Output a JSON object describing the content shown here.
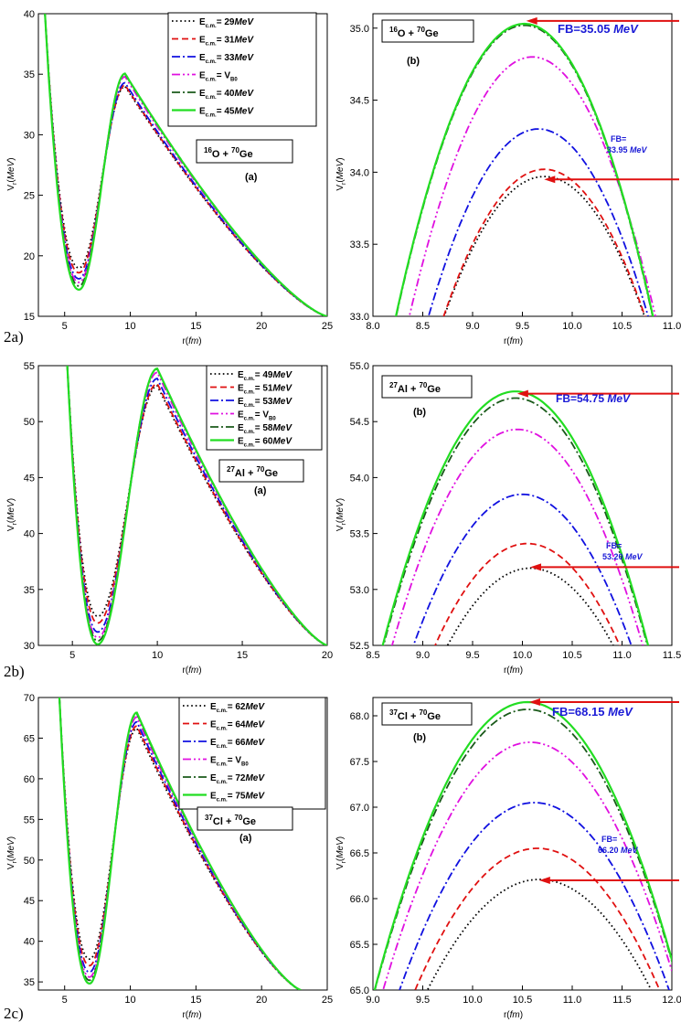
{
  "row_labels": [
    "2a)",
    "2b)",
    "2c)"
  ],
  "chart_data": [
    {
      "type": "line",
      "id": "2a-a",
      "row": 0,
      "side": "left",
      "xlim": [
        3,
        25
      ],
      "ylim": [
        15,
        40
      ],
      "xticks": [
        5,
        10,
        15,
        20,
        25
      ],
      "yticks": [
        15,
        20,
        25,
        30,
        35,
        40
      ],
      "xlabel": "r(fm)",
      "ylabel": "Vr(MeV)",
      "panel_label": "(a)",
      "reaction_label": "16O + 70Ge",
      "well": {
        "x0": 3.5,
        "ystart": 40,
        "xmin": 6.1,
        "xpeak": 9.6,
        "xend": 25,
        "yend": 15
      },
      "series": [
        {
          "name": "Ec.m.= 29MeV",
          "color": "#000000",
          "dash": "dot",
          "ymin": 19.0,
          "ypeak": 34.0
        },
        {
          "name": "Ec.m.= 31MeV",
          "color": "#e01010",
          "dash": "dash",
          "ymin": 18.6,
          "ypeak": 34.1
        },
        {
          "name": "Ec.m.= 33MeV",
          "color": "#1010e0",
          "dash": "dashdot",
          "ymin": 18.1,
          "ypeak": 34.3
        },
        {
          "name": "Ec.m.= VB0",
          "color": "#e010e0",
          "dash": "dashdotdot",
          "ymin": 17.8,
          "ypeak": 34.8
        },
        {
          "name": "Ec.m.= 40MeV",
          "color": "#1a5a1a",
          "dash": "dashdot",
          "ymin": 17.5,
          "ypeak": 35.0
        },
        {
          "name": "Ec.m.= 45MeV",
          "color": "#22dd22",
          "dash": "solid",
          "ymin": 17.2,
          "ypeak": 35.05
        }
      ]
    },
    {
      "type": "line",
      "id": "2a-b",
      "row": 0,
      "side": "right",
      "xlim": [
        8.0,
        11.0
      ],
      "ylim": [
        33.0,
        35.1
      ],
      "xticks": [
        8.0,
        8.5,
        9.0,
        9.5,
        10.0,
        10.5,
        11.0
      ],
      "yticks": [
        33.0,
        33.5,
        34.0,
        34.5,
        35.0
      ],
      "xlabel": "r(fm)",
      "ylabel": "Vr(MeV)",
      "panel_label": "(b)",
      "reaction_label": "16O + 70Ge",
      "fb_high": "FB=35.05 MeV",
      "fb_low_1": "FB=",
      "fb_low_2": "33.95 MeV",
      "fb_high_value": 35.05,
      "fb_low_value": 33.95,
      "series": [
        {
          "name": "29 MeV",
          "color": "#000000",
          "dash": "dot",
          "xpeak": 9.72,
          "ypeak": 33.97,
          "a": 0.96
        },
        {
          "name": "31 MeV",
          "color": "#e01010",
          "dash": "dash",
          "xpeak": 9.72,
          "ypeak": 34.02,
          "a": 1.0
        },
        {
          "name": "33 MeV",
          "color": "#1010e0",
          "dash": "dashdot",
          "xpeak": 9.66,
          "ypeak": 34.3,
          "a": 1.07
        },
        {
          "name": "VB0",
          "color": "#e010e0",
          "dash": "dashdotdot",
          "xpeak": 9.6,
          "ypeak": 34.8,
          "a": 1.18
        },
        {
          "name": "40 MeV",
          "color": "#1a5a1a",
          "dash": "dashdot",
          "xpeak": 9.52,
          "ypeak": 35.02,
          "a": 1.22
        },
        {
          "name": "45 MeV",
          "color": "#22dd22",
          "dash": "solid",
          "xpeak": 9.52,
          "ypeak": 35.03,
          "a": 1.22
        }
      ]
    },
    {
      "type": "line",
      "id": "2b-a",
      "row": 1,
      "side": "left",
      "xlim": [
        3,
        20
      ],
      "ylim": [
        30,
        55
      ],
      "xticks": [
        5,
        10,
        15,
        20
      ],
      "yticks": [
        30,
        35,
        40,
        45,
        50,
        55
      ],
      "xlabel": "r(fm)",
      "ylabel": "Vr(MeV)",
      "panel_label": "(a)",
      "reaction_label": "27Al + 70Ge",
      "well": {
        "x0": 4.7,
        "ystart": 55,
        "xmin": 6.5,
        "xpeak": 10.0,
        "xend": 20,
        "yend": 30
      },
      "series": [
        {
          "name": "Ec.m.= 49MeV",
          "color": "#000000",
          "dash": "dot",
          "ymin": 32.6,
          "ypeak": 53.2
        },
        {
          "name": "Ec.m.= 51MeV",
          "color": "#e01010",
          "dash": "dash",
          "ymin": 32.0,
          "ypeak": 53.4
        },
        {
          "name": "Ec.m.= 53MeV",
          "color": "#1010e0",
          "dash": "dashdot",
          "ymin": 31.2,
          "ypeak": 53.85
        },
        {
          "name": "Ec.m.= VB0",
          "color": "#e010e0",
          "dash": "dashdotdot",
          "ymin": 30.7,
          "ypeak": 54.4
        },
        {
          "name": "Ec.m.= 58MeV",
          "color": "#1a5a1a",
          "dash": "dashdot",
          "ymin": 30.4,
          "ypeak": 54.7
        },
        {
          "name": "Ec.m.= 60MeV",
          "color": "#22dd22",
          "dash": "solid",
          "ymin": 30.1,
          "ypeak": 54.75
        }
      ]
    },
    {
      "type": "line",
      "id": "2b-b",
      "row": 1,
      "side": "right",
      "xlim": [
        8.5,
        11.5
      ],
      "ylim": [
        52.5,
        55.0
      ],
      "xticks": [
        8.5,
        9.0,
        9.5,
        10.0,
        10.5,
        11.0,
        11.5
      ],
      "yticks": [
        52.5,
        53.0,
        53.5,
        54.0,
        54.5,
        55.0
      ],
      "xlabel": "r(fm)",
      "ylabel": "Vr(MeV)",
      "panel_label": "(b)",
      "reaction_label": "27Al + 70Ge",
      "fb_high": "FB=54.75 MeV",
      "fb_low_1": "FB=",
      "fb_low_2": "53.20 MeV",
      "fb_high_value": 54.75,
      "fb_low_value": 53.2,
      "series": [
        {
          "name": "49 MeV",
          "color": "#000000",
          "dash": "dot",
          "xpeak": 10.08,
          "ypeak": 53.19,
          "a": 1.0
        },
        {
          "name": "51 MeV",
          "color": "#e01010",
          "dash": "dash",
          "xpeak": 10.05,
          "ypeak": 53.41,
          "a": 1.06
        },
        {
          "name": "53 MeV",
          "color": "#1010e0",
          "dash": "dashdot",
          "xpeak": 10.0,
          "ypeak": 53.85,
          "a": 1.13
        },
        {
          "name": "VB0",
          "color": "#e010e0",
          "dash": "dashdotdot",
          "xpeak": 9.95,
          "ypeak": 54.43,
          "a": 1.22
        },
        {
          "name": "58 MeV",
          "color": "#1a5a1a",
          "dash": "dashdot",
          "xpeak": 9.93,
          "ypeak": 54.71,
          "a": 1.26
        },
        {
          "name": "60 MeV",
          "color": "#22dd22",
          "dash": "solid",
          "xpeak": 9.93,
          "ypeak": 54.77,
          "a": 1.28
        }
      ]
    },
    {
      "type": "line",
      "id": "2c-a",
      "row": 2,
      "side": "left",
      "xlim": [
        3,
        25
      ],
      "ylim": [
        34,
        70
      ],
      "xticks": [
        5,
        10,
        15,
        20,
        25
      ],
      "yticks": [
        35,
        40,
        45,
        50,
        55,
        60,
        65,
        70
      ],
      "xlabel": "r(fm)",
      "ylabel": "Vr(MeV)",
      "panel_label": "(a)",
      "reaction_label": "37Cl + 70Ge",
      "well": {
        "x0": 4.6,
        "ystart": 70,
        "xmin": 6.9,
        "xpeak": 10.5,
        "xend": 23,
        "yend": 34
      },
      "series": [
        {
          "name": "Ec.m.= 62MeV",
          "color": "#000000",
          "dash": "dot",
          "ymin": 37.8,
          "ypeak": 66.2
        },
        {
          "name": "Ec.m.= 64MeV",
          "color": "#e01010",
          "dash": "dash",
          "ymin": 37.0,
          "ypeak": 66.5
        },
        {
          "name": "Ec.m.= 66MeV",
          "color": "#1010e0",
          "dash": "dashdot",
          "ymin": 36.2,
          "ypeak": 67.0
        },
        {
          "name": "Ec.m.= VB0",
          "color": "#e010e0",
          "dash": "dashdotdot",
          "ymin": 35.6,
          "ypeak": 67.6
        },
        {
          "name": "Ec.m.= 72MeV",
          "color": "#1a5a1a",
          "dash": "dashdot",
          "ymin": 35.2,
          "ypeak": 68.0
        },
        {
          "name": "Ec.m.= 75MeV",
          "color": "#22dd22",
          "dash": "solid",
          "ymin": 34.8,
          "ypeak": 68.15
        }
      ]
    },
    {
      "type": "line",
      "id": "2c-b",
      "row": 2,
      "side": "right",
      "xlim": [
        9.0,
        12.0
      ],
      "ylim": [
        65.0,
        68.2
      ],
      "xticks": [
        9.0,
        9.5,
        10.0,
        10.5,
        11.0,
        11.5,
        12.0
      ],
      "yticks": [
        65.0,
        65.5,
        66.0,
        66.5,
        67.0,
        67.5,
        68.0
      ],
      "xlabel": "r(fm)",
      "ylabel": "Vr(MeV)",
      "panel_label": "(b)",
      "reaction_label": "37Cl + 70Ge",
      "fb_high": "FB=68.15 MeV",
      "fb_low_1": "FB=",
      "fb_low_2": "66.20 MeV",
      "fb_high_value": 68.15,
      "fb_low_value": 66.2,
      "series": [
        {
          "name": "62 MeV",
          "color": "#000000",
          "dash": "dot",
          "xpeak": 10.67,
          "ypeak": 66.21,
          "a": 0.96
        },
        {
          "name": "64 MeV",
          "color": "#e01010",
          "dash": "dash",
          "xpeak": 10.65,
          "ypeak": 66.55,
          "a": 1.03
        },
        {
          "name": "66 MeV",
          "color": "#1010e0",
          "dash": "dashdot",
          "xpeak": 10.62,
          "ypeak": 67.05,
          "a": 1.12
        },
        {
          "name": "VB0",
          "color": "#e010e0",
          "dash": "dashdotdot",
          "xpeak": 10.58,
          "ypeak": 67.71,
          "a": 1.24
        },
        {
          "name": "72 MeV",
          "color": "#1a5a1a",
          "dash": "dashdot",
          "xpeak": 10.55,
          "ypeak": 68.07,
          "a": 1.31
        },
        {
          "name": "75 MeV",
          "color": "#22dd22",
          "dash": "solid",
          "xpeak": 10.55,
          "ypeak": 68.15,
          "a": 1.34
        }
      ]
    }
  ]
}
